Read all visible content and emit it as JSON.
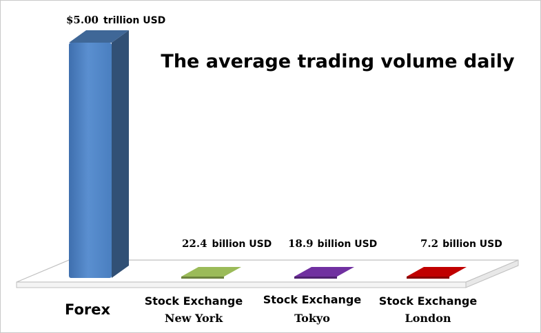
{
  "chart_data": {
    "type": "bar",
    "title": "The average trading volume daily",
    "categories": [
      {
        "line1": "Forex",
        "line2": ""
      },
      {
        "line1": "Stock Exchange",
        "line2": "New York"
      },
      {
        "line1": "Stock Exchange",
        "line2": "Tokyo"
      },
      {
        "line1": "Stock Exchange",
        "line2": "London"
      }
    ],
    "values_billion_usd": [
      5000,
      22.4,
      18.9,
      7.2
    ],
    "value_labels": [
      {
        "number": "$5.00",
        "unit": "trillion USD"
      },
      {
        "number": "22.4",
        "unit": "billion USD"
      },
      {
        "number": "18.9",
        "unit": "billion USD"
      },
      {
        "number": "7.2",
        "unit": "billion USD"
      }
    ],
    "bar_colors": [
      "#4f81bd",
      "#9bbb59",
      "#7030a0",
      "#c00000"
    ],
    "ylim": [
      0,
      5000
    ],
    "grid": false,
    "legend": "none"
  }
}
